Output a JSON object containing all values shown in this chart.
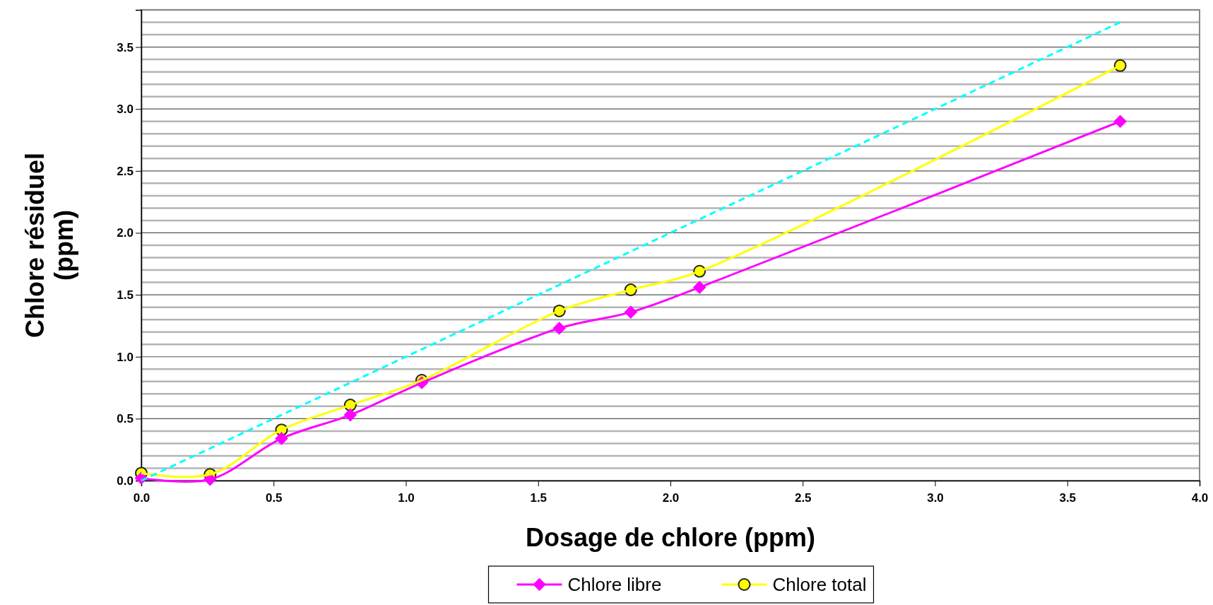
{
  "chart_data": {
    "type": "line",
    "xlabel": "Dosage de chlore (ppm)",
    "ylabel": "Chlore résiduel (ppm)",
    "x": [
      0,
      0.26,
      0.53,
      0.79,
      1.06,
      1.58,
      1.85,
      2.11,
      3.7
    ],
    "series": [
      {
        "name": "Chlore libre",
        "color": "#ff00ff",
        "marker": "diamond",
        "values": [
          0.02,
          0.01,
          0.34,
          0.53,
          0.79,
          1.23,
          1.36,
          1.56,
          2.9
        ]
      },
      {
        "name": "Chlore total",
        "color": "#ffff00",
        "marker": "circle",
        "values": [
          0.06,
          0.05,
          0.41,
          0.61,
          0.81,
          1.37,
          1.54,
          1.69,
          3.35
        ]
      },
      {
        "color": "#00ffff",
        "line_style": "dashed",
        "marker": "none",
        "x": [
          0,
          3.7
        ],
        "values": [
          0,
          3.7
        ]
      }
    ],
    "xlim": [
      0,
      4
    ],
    "xticks": [
      {
        "value": 0,
        "label": "0.0"
      },
      0.5,
      {
        "value": 1,
        "label": "1.0"
      },
      1.5,
      {
        "value": 2,
        "label": "2.0"
      },
      2.5,
      {
        "value": 3,
        "label": "3.0"
      },
      3.5,
      {
        "value": 4,
        "label": "4.0"
      }
    ],
    "ylim": [
      0,
      3.8
    ],
    "yticks": [
      {
        "value": 0,
        "label": "0.0"
      },
      {
        "value": 0.1,
        "label": null
      },
      {
        "value": 0.2,
        "label": null
      },
      {
        "value": 0.3,
        "label": null
      },
      {
        "value": 0.4,
        "label": null
      },
      0.5,
      {
        "value": 0.6,
        "label": null
      },
      {
        "value": 0.7,
        "label": null
      },
      {
        "value": 0.8,
        "label": null
      },
      {
        "value": 0.9,
        "label": null
      },
      {
        "value": 1,
        "label": "1.0"
      },
      {
        "value": 1.1,
        "label": null
      },
      {
        "value": 1.2,
        "label": null
      },
      {
        "value": 1.3,
        "label": null
      },
      {
        "value": 1.4,
        "label": null
      },
      1.5,
      {
        "value": 1.6,
        "label": null
      },
      {
        "value": 1.7,
        "label": null
      },
      {
        "value": 1.8,
        "label": null
      },
      {
        "value": 1.9,
        "label": null
      },
      {
        "value": 2,
        "label": "2.0"
      },
      {
        "value": 2.1,
        "label": null
      },
      {
        "value": 2.2,
        "label": null
      },
      {
        "value": 2.3,
        "label": null
      },
      {
        "value": 2.4,
        "label": null
      },
      2.5,
      {
        "value": 2.6,
        "label": null
      },
      {
        "value": 2.7,
        "label": null
      },
      {
        "value": 2.8,
        "label": null
      },
      {
        "value": 2.9,
        "label": null
      },
      {
        "value": 3,
        "label": "3.0"
      },
      {
        "value": 3.1,
        "label": null
      },
      {
        "value": 3.2,
        "label": null
      },
      {
        "value": 3.3,
        "label": null
      },
      {
        "value": 3.4,
        "label": null
      },
      3.5,
      {
        "value": 3.6,
        "label": null
      },
      {
        "value": 3.7,
        "label": null
      },
      {
        "value": 3.8,
        "label": null
      }
    ],
    "grid": "y",
    "legend": "bottom"
  }
}
